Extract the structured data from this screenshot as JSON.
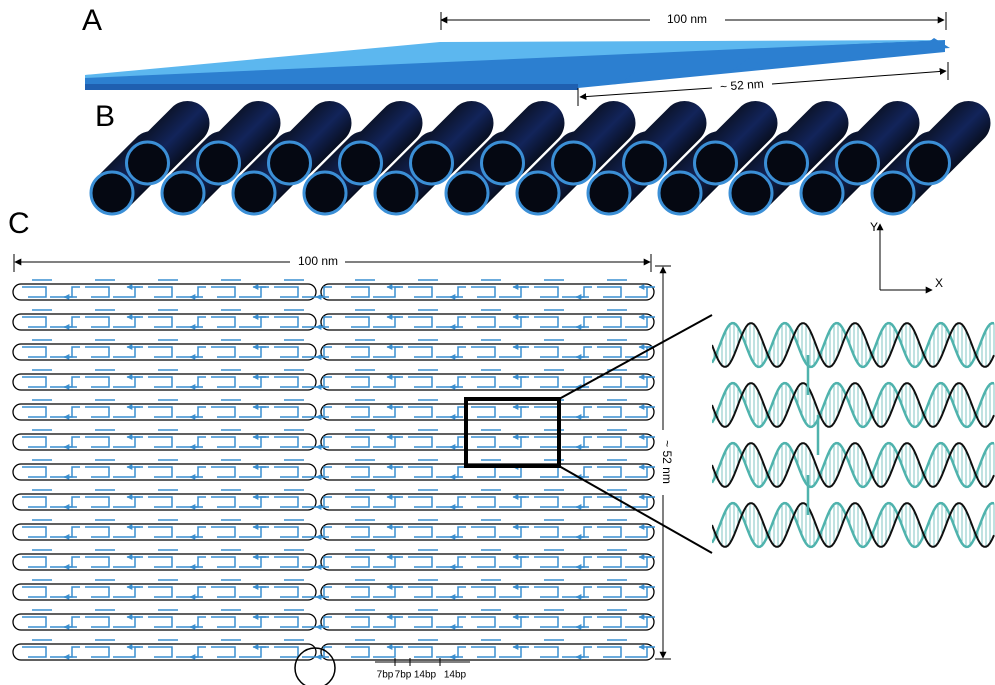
{
  "panels": [
    {
      "label": "A",
      "dimensions": [
        "100 nm",
        "~ 52 nm"
      ]
    },
    {
      "label": "B"
    },
    {
      "label": "C",
      "dimensions": [
        "100 nm",
        "~ 52 nm"
      ],
      "axes": [
        "Y",
        "X"
      ],
      "spacing": [
        "7bp",
        "7bp",
        "14bp",
        "14bp"
      ]
    }
  ]
}
